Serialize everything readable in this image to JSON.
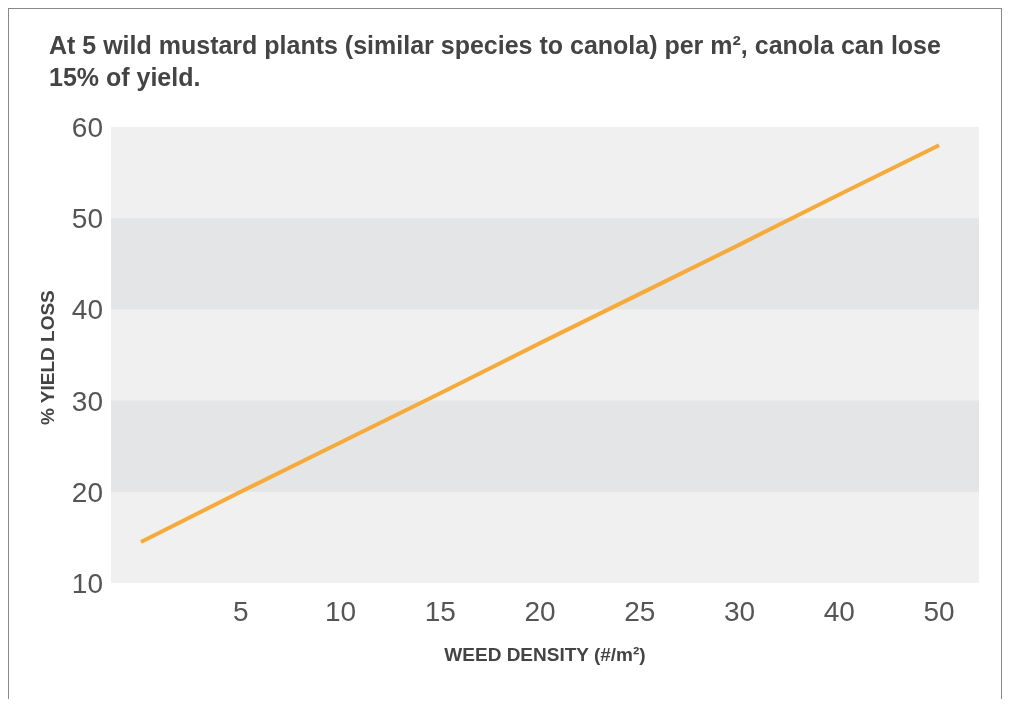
{
  "chart_data": {
    "type": "line",
    "title": "At 5 wild mustard plants (similar species to canola) per m², canola can lose 15% of yield.",
    "xlabel": "WEED DENSITY (#/m²)",
    "ylabel": "% YIELD LOSS",
    "categories": [
      null,
      "5",
      "10",
      "15",
      "20",
      "25",
      "30",
      "40",
      "50"
    ],
    "series": [
      {
        "color": "#f6aa3a",
        "values": [
          14.5,
          20,
          25.4,
          30.8,
          36.3,
          41.7,
          47.1,
          52.6,
          58
        ]
      }
    ],
    "ylim": [
      10,
      60
    ],
    "yticks": [
      10,
      20,
      30,
      40,
      50,
      60
    ],
    "bands": [
      {
        "axis": "y",
        "from": 20,
        "to": 30,
        "color": "#e4e5e6"
      },
      {
        "axis": "y",
        "from": 40,
        "to": 50,
        "color": "#e4e5e6"
      }
    ],
    "grid": false,
    "legend": false,
    "marker": "none",
    "line_style": "solid"
  }
}
